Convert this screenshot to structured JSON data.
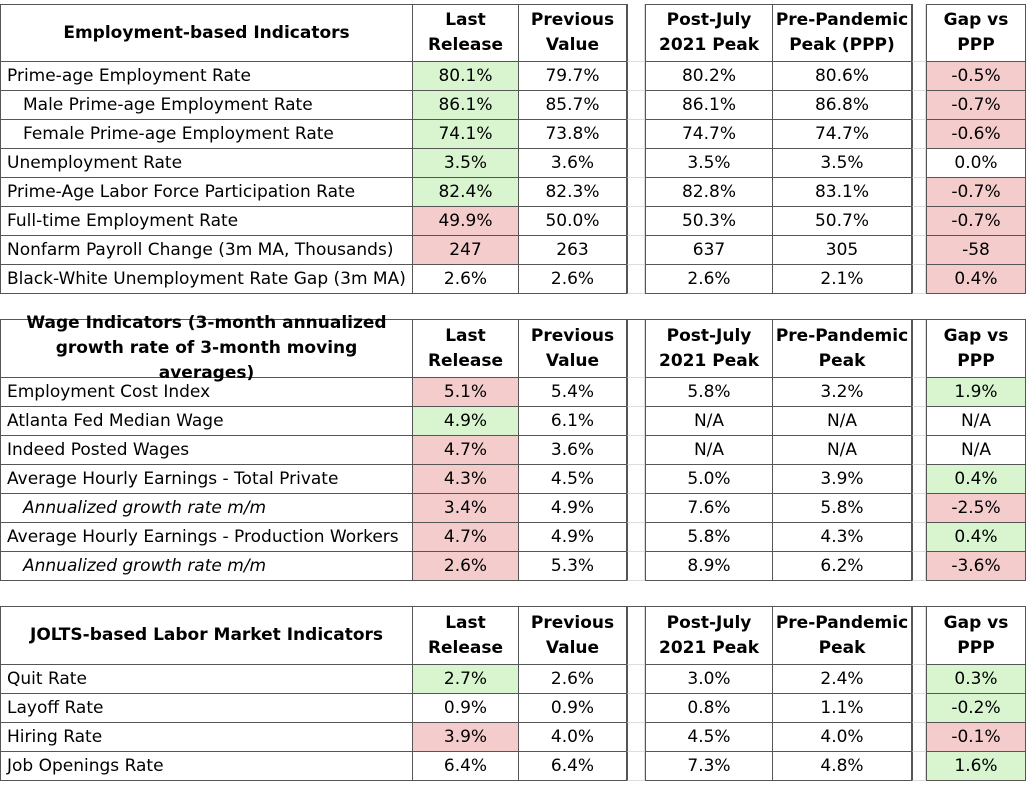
{
  "tables": [
    {
      "title": "Employment-based Indicators",
      "columns": [
        [
          "Last",
          "Release"
        ],
        [
          "Previous",
          "Value"
        ],
        [
          "Post-July",
          "2021 Peak"
        ],
        [
          "Pre-Pandemic",
          "Peak (PPP)"
        ],
        [
          "Gap vs",
          "PPP"
        ]
      ],
      "rows": [
        {
          "label": "Prime-age Employment Rate",
          "values": [
            "80.1%",
            "79.7%",
            "80.2%",
            "80.6%",
            "-0.5%"
          ],
          "fills": [
            "#d8f5d0",
            null,
            null,
            null,
            "#f4cccc"
          ]
        },
        {
          "label": "Male Prime-age Employment Rate",
          "indent": true,
          "values": [
            "86.1%",
            "85.7%",
            "86.1%",
            "86.8%",
            "-0.7%"
          ],
          "fills": [
            "#d8f5d0",
            null,
            null,
            null,
            "#f4cccc"
          ]
        },
        {
          "label": "Female Prime-age Employment Rate",
          "indent": true,
          "values": [
            "74.1%",
            "73.8%",
            "74.7%",
            "74.7%",
            "-0.6%"
          ],
          "fills": [
            "#d8f5d0",
            null,
            null,
            null,
            "#f4cccc"
          ]
        },
        {
          "label": "Unemployment Rate",
          "values": [
            "3.5%",
            "3.6%",
            "3.5%",
            "3.5%",
            "0.0%"
          ],
          "fills": [
            "#d8f5d0",
            null,
            null,
            null,
            null
          ]
        },
        {
          "label": "Prime-Age Labor Force Participation Rate",
          "values": [
            "82.4%",
            "82.3%",
            "82.8%",
            "83.1%",
            "-0.7%"
          ],
          "fills": [
            "#d8f5d0",
            null,
            null,
            null,
            "#f4cccc"
          ]
        },
        {
          "label": "Full-time Employment Rate",
          "values": [
            "49.9%",
            "50.0%",
            "50.3%",
            "50.7%",
            "-0.7%"
          ],
          "fills": [
            "#f4cccc",
            null,
            null,
            null,
            "#f4cccc"
          ]
        },
        {
          "label": "Nonfarm Payroll Change (3m MA, Thousands)",
          "values": [
            "247",
            "263",
            "637",
            "305",
            "-58"
          ],
          "fills": [
            "#f4cccc",
            null,
            null,
            null,
            "#f4cccc"
          ]
        },
        {
          "label": "Black-White Unemployment Rate Gap (3m MA)",
          "values": [
            "2.6%",
            "2.6%",
            "2.6%",
            "2.1%",
            "0.4%"
          ],
          "fills": [
            null,
            null,
            null,
            null,
            "#f4cccc"
          ]
        }
      ]
    },
    {
      "title": "Wage Indicators (3-month annualized growth rate of 3-month moving averages)",
      "columns": [
        [
          "Last",
          "Release"
        ],
        [
          "Previous",
          "Value"
        ],
        [
          "Post-July",
          "2021 Peak"
        ],
        [
          "Pre-Pandemic",
          "Peak"
        ],
        [
          "Gap vs",
          "PPP"
        ]
      ],
      "rows": [
        {
          "label": "Employment Cost Index",
          "values": [
            "5.1%",
            "5.4%",
            "5.8%",
            "3.2%",
            "1.9%"
          ],
          "fills": [
            "#f4cccc",
            null,
            null,
            null,
            "#d8f5d0"
          ]
        },
        {
          "label": "Atlanta Fed Median Wage",
          "values": [
            "4.9%",
            "6.1%",
            "N/A",
            "N/A",
            "N/A"
          ],
          "fills": [
            "#d8f5d0",
            null,
            null,
            null,
            null
          ]
        },
        {
          "label": "Indeed Posted Wages",
          "values": [
            "4.7%",
            "3.6%",
            "N/A",
            "N/A",
            "N/A"
          ],
          "fills": [
            "#f4cccc",
            null,
            null,
            null,
            null
          ]
        },
        {
          "label": "Average Hourly Earnings - Total Private",
          "values": [
            "4.3%",
            "4.5%",
            "5.0%",
            "3.9%",
            "0.4%"
          ],
          "fills": [
            "#f4cccc",
            null,
            null,
            null,
            "#d8f5d0"
          ]
        },
        {
          "label": "Annualized growth rate m/m",
          "indent": true,
          "italic": true,
          "values": [
            "3.4%",
            "4.9%",
            "7.6%",
            "5.8%",
            "-2.5%"
          ],
          "fills": [
            "#f4cccc",
            null,
            null,
            null,
            "#f4cccc"
          ]
        },
        {
          "label": "Average Hourly Earnings - Production Workers",
          "values": [
            "4.7%",
            "4.9%",
            "5.8%",
            "4.3%",
            "0.4%"
          ],
          "fills": [
            "#f4cccc",
            null,
            null,
            null,
            "#d8f5d0"
          ]
        },
        {
          "label": "Annualized growth rate m/m",
          "indent": true,
          "italic": true,
          "values": [
            "2.6%",
            "5.3%",
            "8.9%",
            "6.2%",
            "-3.6%"
          ],
          "fills": [
            "#f4cccc",
            null,
            null,
            null,
            "#f4cccc"
          ]
        }
      ]
    },
    {
      "title": "JOLTS-based Labor Market Indicators",
      "columns": [
        [
          "Last",
          "Release"
        ],
        [
          "Previous",
          "Value"
        ],
        [
          "Post-July",
          "2021 Peak"
        ],
        [
          "Pre-Pandemic",
          "Peak"
        ],
        [
          "Gap vs",
          "PPP"
        ]
      ],
      "rows": [
        {
          "label": "Quit Rate",
          "values": [
            "2.7%",
            "2.6%",
            "3.0%",
            "2.4%",
            "0.3%"
          ],
          "fills": [
            "#d8f5d0",
            null,
            null,
            null,
            "#d8f5d0"
          ]
        },
        {
          "label": "Layoff Rate",
          "values": [
            "0.9%",
            "0.9%",
            "0.8%",
            "1.1%",
            "-0.2%"
          ],
          "fills": [
            null,
            null,
            null,
            null,
            "#d8f5d0"
          ]
        },
        {
          "label": "Hiring Rate",
          "values": [
            "3.9%",
            "4.0%",
            "4.5%",
            "4.0%",
            "-0.1%"
          ],
          "fills": [
            "#f4cccc",
            null,
            null,
            null,
            "#f4cccc"
          ]
        },
        {
          "label": "Job Openings Rate",
          "values": [
            "6.4%",
            "6.4%",
            "7.3%",
            "4.8%",
            "1.6%"
          ],
          "fills": [
            null,
            null,
            null,
            null,
            "#d8f5d0"
          ]
        }
      ]
    }
  ]
}
